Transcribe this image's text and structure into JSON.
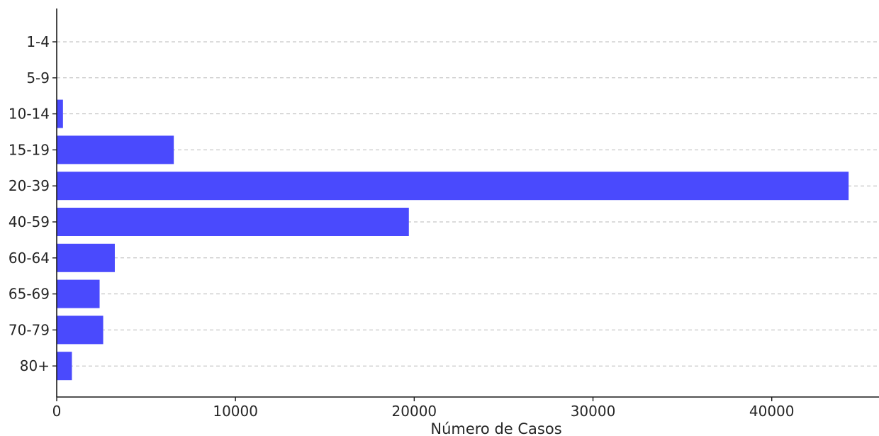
{
  "chart_data": {
    "type": "bar",
    "orientation": "horizontal",
    "title": "",
    "xlabel": "Número de Casos",
    "ylabel": "",
    "categories": [
      "1-4",
      "5-9",
      "10-14",
      "15-19",
      "20-39",
      "40-59",
      "60-64",
      "65-69",
      "70-79",
      "80+"
    ],
    "values": [
      0,
      0,
      350,
      6550,
      44300,
      19700,
      3250,
      2400,
      2600,
      850
    ],
    "xlim": [
      0,
      46000
    ],
    "xticks": [
      0,
      10000,
      20000,
      30000,
      40000
    ],
    "grid": "horizontal dashed",
    "bar_color": "#4a4afd"
  }
}
